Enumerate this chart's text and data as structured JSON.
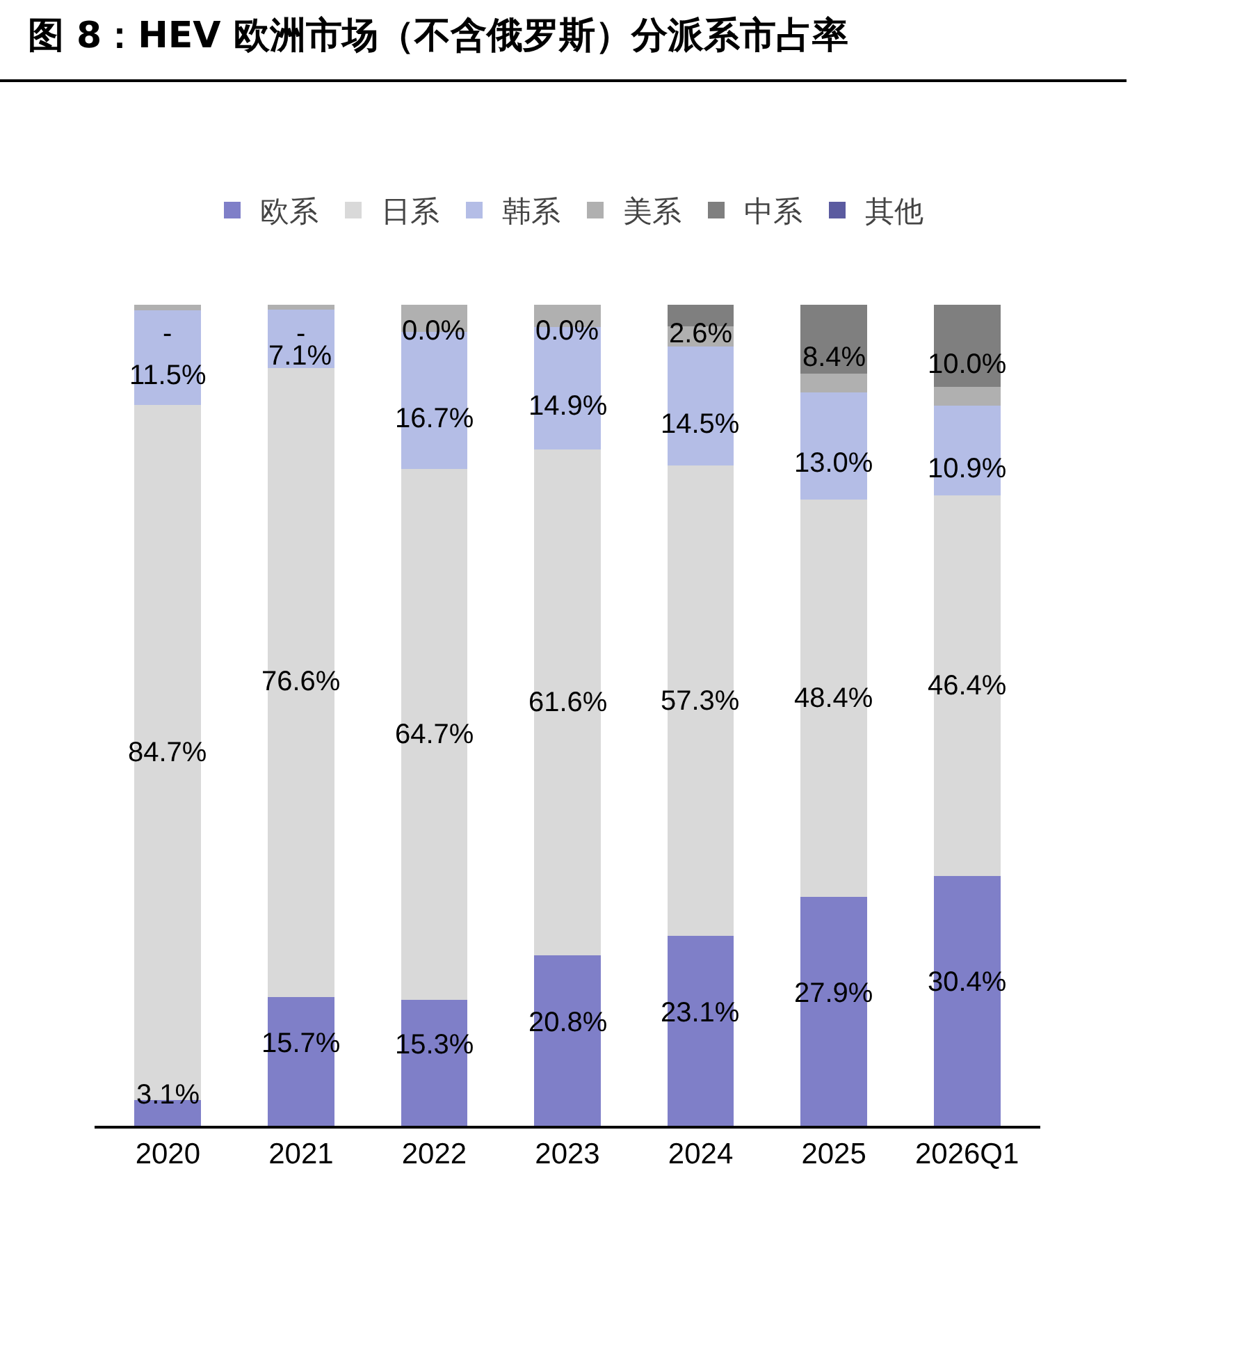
{
  "chart_data": {
    "type": "bar",
    "title": "图 8：HEV 欧洲市场（不含俄罗斯）分派系市占率",
    "stacked": true,
    "legend": "top",
    "ylim": [
      0,
      100
    ],
    "tick_labels": "x",
    "grid": false,
    "categories": [
      "2020",
      "2021",
      "2022",
      "2023",
      "2024",
      "2025",
      "2026Q1"
    ],
    "series": [
      {
        "name": "欧系",
        "color": "#7f7fc8",
        "values": [
          3.1,
          15.7,
          15.3,
          20.8,
          23.1,
          27.9,
          30.4
        ],
        "value_labels": [
          "3.1%",
          "15.7%",
          "15.3%",
          "20.8%",
          "23.1%",
          "27.9%",
          "30.4%"
        ]
      },
      {
        "name": "日系",
        "color": "#d9d9d9",
        "values": [
          84.7,
          76.6,
          64.7,
          61.6,
          57.3,
          48.4,
          46.4
        ],
        "value_labels": [
          "84.7%",
          "76.6%",
          "64.7%",
          "61.6%",
          "57.3%",
          "48.4%",
          "46.4%"
        ]
      },
      {
        "name": "韩系",
        "color": "#b4bde6",
        "values": [
          11.5,
          7.1,
          16.7,
          14.9,
          14.5,
          13.0,
          10.9
        ],
        "value_labels": [
          "11.5%",
          "7.1%",
          "16.7%",
          "14.9%",
          "14.5%",
          "13.0%",
          "10.9%"
        ]
      },
      {
        "name": "美系",
        "color": "#b0b0b0",
        "values": [
          0.7,
          0.6,
          3.3,
          2.7,
          2.5,
          2.3,
          2.3
        ],
        "value_labels": [
          "-",
          "-",
          null,
          null,
          null,
          null,
          null
        ]
      },
      {
        "name": "中系",
        "color": "#7f7f7f",
        "values": [
          0,
          0,
          0.0,
          0.0,
          2.6,
          8.4,
          10.0
        ],
        "value_labels": [
          null,
          null,
          "0.0%",
          "0.0%",
          "2.6%",
          "8.4%",
          "10.0%"
        ]
      },
      {
        "name": "其他",
        "color": "#5b5ba0",
        "values": [
          0,
          0,
          0,
          0,
          0,
          0,
          0
        ]
      }
    ]
  }
}
